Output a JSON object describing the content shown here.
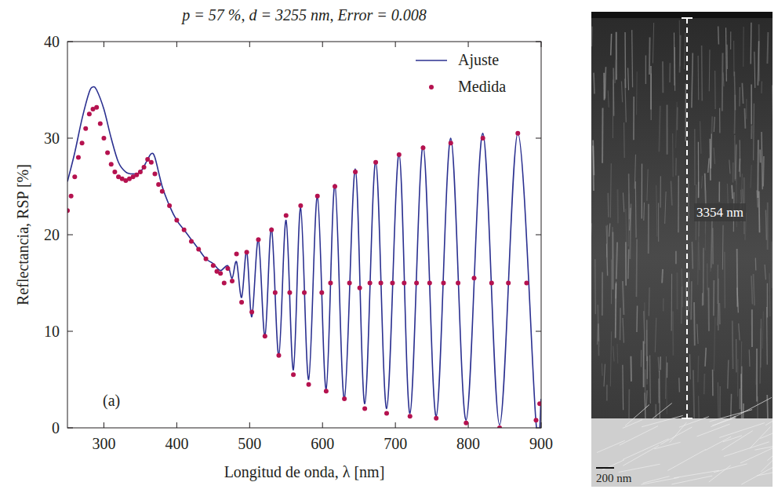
{
  "chart_data": {
    "type": "line",
    "title": "p = 57 %, d = 3255 nm, Error = 0.008",
    "x_label": "Longitud de onda, λ [nm]",
    "y_label": "Reflectancia, RSP [%]",
    "panel_label": "(a)",
    "xlim": [
      250,
      900
    ],
    "ylim": [
      0,
      40
    ],
    "xticks": [
      300,
      400,
      500,
      600,
      700,
      800,
      900
    ],
    "yticks": [
      0,
      10,
      20,
      30,
      40
    ],
    "grid": false,
    "legend": "top-right",
    "series": [
      {
        "name": "Ajuste",
        "type": "line",
        "color": "#2b3090",
        "line_style": "solid",
        "x": [
          250,
          260,
          270,
          280,
          285,
          290,
          300,
          310,
          320,
          330,
          340,
          350,
          360,
          365,
          370,
          380,
          390,
          400,
          410,
          420,
          430,
          440,
          450,
          460,
          470,
          476,
          482,
          489,
          496,
          503,
          512,
          521,
          530,
          540,
          550,
          560,
          570,
          581,
          593,
          605,
          617,
          630,
          645,
          658,
          673,
          688,
          705,
          720,
          738,
          756,
          776,
          797,
          820,
          843,
          868,
          893,
          900
        ],
        "values": [
          25.5,
          28.5,
          32,
          34.8,
          35.3,
          35,
          33,
          30,
          27.5,
          26.5,
          26.3,
          26.5,
          27.8,
          28.4,
          28,
          25,
          23,
          21.5,
          20.5,
          19.5,
          18.5,
          17.5,
          17,
          16.3,
          16.8,
          15.5,
          17.2,
          13.5,
          18.3,
          11.5,
          19.5,
          9.5,
          20.7,
          7.5,
          21.5,
          6,
          22.8,
          5,
          24,
          4,
          25.2,
          3,
          26.8,
          2.5,
          27.6,
          2,
          28.4,
          1.5,
          29.2,
          1.2,
          30,
          0.8,
          30.5,
          0.3,
          30.5,
          0.5,
          3
        ]
      },
      {
        "name": "Medida",
        "type": "scatter",
        "color": "#b5124f",
        "marker": "circle",
        "x": [
          250,
          255,
          260,
          265,
          270,
          275,
          280,
          285,
          290,
          295,
          300,
          305,
          310,
          315,
          320,
          325,
          330,
          335,
          340,
          345,
          350,
          355,
          360,
          365,
          370,
          375,
          380,
          390,
          400,
          410,
          420,
          430,
          440,
          450,
          455,
          460,
          465,
          470,
          476,
          482,
          489,
          496,
          503,
          512,
          521,
          530,
          535,
          540,
          550,
          555,
          560,
          570,
          575,
          581,
          593,
          599,
          605,
          611,
          617,
          630,
          637,
          645,
          651,
          658,
          665,
          673,
          680,
          688,
          696,
          705,
          712,
          720,
          729,
          738,
          747,
          756,
          766,
          776,
          786,
          797,
          808,
          820,
          832,
          843,
          855,
          868,
          880,
          893,
          898
        ],
        "values": [
          22.5,
          24,
          26,
          28,
          29.5,
          31,
          32.5,
          33,
          33.2,
          31.5,
          30,
          28.5,
          27.3,
          26.5,
          26,
          25.8,
          25.6,
          25.8,
          26,
          26.2,
          26.5,
          27,
          27.8,
          27.5,
          26.3,
          25.2,
          24.5,
          23,
          21.5,
          20.5,
          19.3,
          18.5,
          17.5,
          16.8,
          16.2,
          16,
          15,
          16.5,
          15.2,
          18,
          13,
          18.2,
          12,
          19.5,
          9.5,
          20.5,
          14,
          7.5,
          22,
          14,
          5.5,
          23,
          14,
          4.5,
          24,
          14,
          3.8,
          15,
          25,
          3,
          15,
          26.5,
          14.5,
          2,
          15,
          27.5,
          15,
          1.5,
          15,
          28.3,
          15,
          1.2,
          15,
          29,
          15,
          1,
          15,
          29.5,
          15,
          0.5,
          15.5,
          30,
          15,
          0,
          15,
          30.5,
          15,
          0.8,
          2.5
        ]
      }
    ]
  },
  "micrograph": {
    "thickness_label": "3354 nm",
    "scale_bar_label": "200 nm"
  }
}
